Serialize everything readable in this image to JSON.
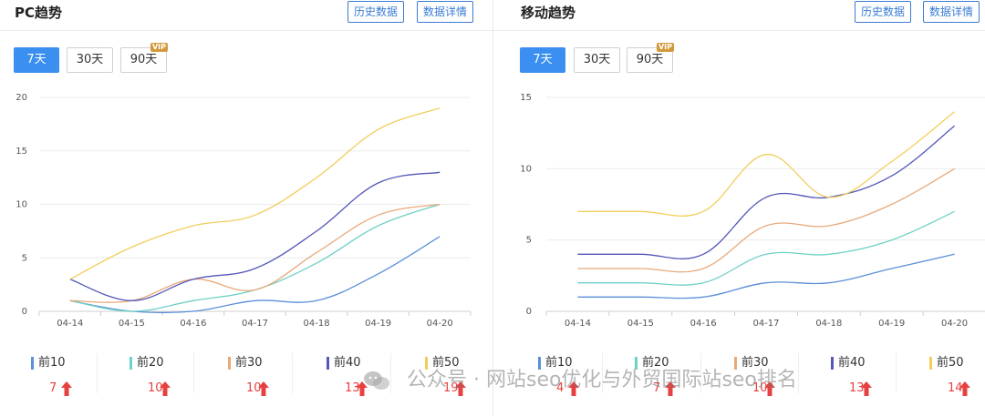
{
  "pc": {
    "title": "PC趋势",
    "btn_history": "历史数据",
    "btn_detail": "数据详情",
    "ranges": [
      "7天",
      "30天",
      "90天"
    ],
    "vip": "VIP",
    "legend": [
      {
        "label": "前10",
        "value": "7",
        "color": "#5b8fd9"
      },
      {
        "label": "前20",
        "value": "10",
        "color": "#6fd0c6"
      },
      {
        "label": "前30",
        "value": "10",
        "color": "#e8a97a"
      },
      {
        "label": "前40",
        "value": "13",
        "color": "#5357b8"
      },
      {
        "label": "前50",
        "value": "19",
        "color": "#f2cd5c"
      }
    ]
  },
  "mobile": {
    "title": "移动趋势",
    "btn_history": "历史数据",
    "btn_detail": "数据详情",
    "ranges": [
      "7天",
      "30天",
      "90天"
    ],
    "vip": "VIP",
    "legend": [
      {
        "label": "前10",
        "value": "4",
        "color": "#5b8fd9"
      },
      {
        "label": "前20",
        "value": "7",
        "color": "#6fd0c6"
      },
      {
        "label": "前30",
        "value": "10",
        "color": "#e8a97a"
      },
      {
        "label": "前40",
        "value": "13",
        "color": "#5357b8"
      },
      {
        "label": "前50",
        "value": "14",
        "color": "#f2cd5c"
      }
    ]
  },
  "watermark": "公众号 · 网站seo优化与外贸国际站seo排名",
  "chart_data": [
    {
      "type": "line",
      "title": "PC趋势",
      "x": [
        "04-14",
        "04-15",
        "04-16",
        "04-17",
        "04-18",
        "04-19",
        "04-20"
      ],
      "ylim": [
        0,
        20
      ],
      "yticks": [
        0,
        5,
        10,
        15,
        20
      ],
      "grid": true,
      "legend_position": "bottom",
      "series": [
        {
          "name": "前10",
          "color": "#5b8fd9",
          "values": [
            1,
            0,
            0,
            1,
            1,
            3.5,
            7
          ]
        },
        {
          "name": "前20",
          "color": "#6fd0c6",
          "values": [
            1,
            0,
            1,
            2,
            4.5,
            8,
            10
          ]
        },
        {
          "name": "前30",
          "color": "#e8a97a",
          "values": [
            1,
            1,
            3,
            2,
            5.5,
            9,
            10
          ]
        },
        {
          "name": "前40",
          "color": "#5357b8",
          "values": [
            3,
            1,
            3,
            4,
            7.5,
            12,
            13
          ]
        },
        {
          "name": "前50",
          "color": "#f2cd5c",
          "values": [
            3,
            6,
            8,
            9,
            12.5,
            17,
            19
          ]
        }
      ]
    },
    {
      "type": "line",
      "title": "移动趋势",
      "x": [
        "04-14",
        "04-15",
        "04-16",
        "04-17",
        "04-18",
        "04-19",
        "04-20"
      ],
      "ylim": [
        0,
        15
      ],
      "yticks": [
        0,
        5,
        10,
        15
      ],
      "grid": true,
      "legend_position": "bottom",
      "series": [
        {
          "name": "前10",
          "color": "#5b8fd9",
          "values": [
            1,
            1,
            1,
            2,
            2,
            3,
            4
          ]
        },
        {
          "name": "前20",
          "color": "#6fd0c6",
          "values": [
            2,
            2,
            2,
            4,
            4,
            5,
            7
          ]
        },
        {
          "name": "前30",
          "color": "#e8a97a",
          "values": [
            3,
            3,
            3,
            6,
            6,
            7.5,
            10
          ]
        },
        {
          "name": "前40",
          "color": "#5357b8",
          "values": [
            4,
            4,
            4,
            8,
            8,
            9.5,
            13
          ]
        },
        {
          "name": "前50",
          "color": "#f2cd5c",
          "values": [
            7,
            7,
            7,
            11,
            8,
            10.5,
            14
          ]
        }
      ]
    }
  ]
}
